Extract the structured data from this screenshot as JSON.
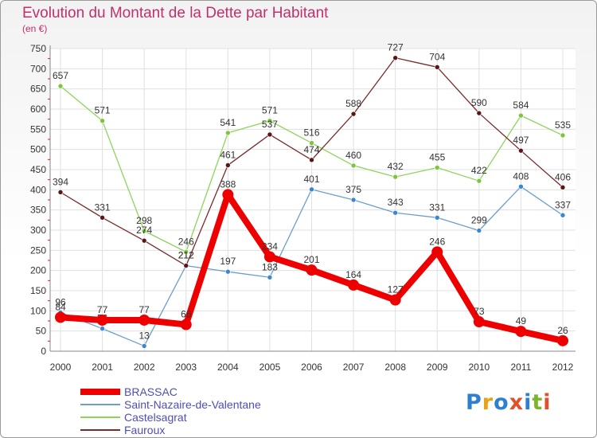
{
  "header": {
    "title": "Evolution du Montant de la Dette par Habitant",
    "subtitle": "(en €)"
  },
  "logo": {
    "text": "Proxiti",
    "colors": [
      "#2f7fd1",
      "#e8a21a",
      "#2f7fd1",
      "#e34f2a",
      "#2f7fd1",
      "#7ab52c",
      "#e34f2a"
    ]
  },
  "chart_data": {
    "type": "line",
    "title": "Evolution du Montant de la Dette par Habitant",
    "subtitle": "(en €)",
    "xlabel": "",
    "ylabel": "",
    "x": [
      "2000",
      "2001",
      "2002",
      "2003",
      "2004",
      "2005",
      "2006",
      "2007",
      "2008",
      "2009",
      "2010",
      "2011",
      "2012"
    ],
    "ylim": [
      0,
      750
    ],
    "yticks": [
      0,
      50,
      100,
      150,
      200,
      250,
      300,
      350,
      400,
      450,
      500,
      550,
      600,
      650,
      700,
      750
    ],
    "grid": true,
    "legend_position": "bottom-left",
    "series": [
      {
        "name": "BRASSAC",
        "color": "#ee0000",
        "emphasis": true,
        "values": [
          84,
          77,
          77,
          66,
          388,
          234,
          201,
          164,
          127,
          246,
          73,
          49,
          26
        ]
      },
      {
        "name": "Saint-Nazaire-de-Valentane",
        "color": "#6a9ecf",
        "emphasis": false,
        "values": [
          96,
          56,
          13,
          212,
          197,
          183,
          401,
          375,
          343,
          331,
          299,
          408,
          337
        ]
      },
      {
        "name": "Castelsagrat",
        "color": "#8ed45a",
        "emphasis": false,
        "values": [
          657,
          571,
          298,
          246,
          541,
          571,
          516,
          460,
          432,
          455,
          422,
          584,
          535
        ]
      },
      {
        "name": "Fauroux",
        "color": "#7a2a2a",
        "emphasis": false,
        "values": [
          394,
          331,
          274,
          212,
          461,
          537,
          474,
          588,
          727,
          704,
          590,
          497,
          406
        ]
      }
    ],
    "point_colors": {
      "Saint-Nazaire-de-Valentane": "#3b86cc",
      "Castelsagrat": "#7cc63a",
      "Fauroux": "#5a1616"
    }
  }
}
